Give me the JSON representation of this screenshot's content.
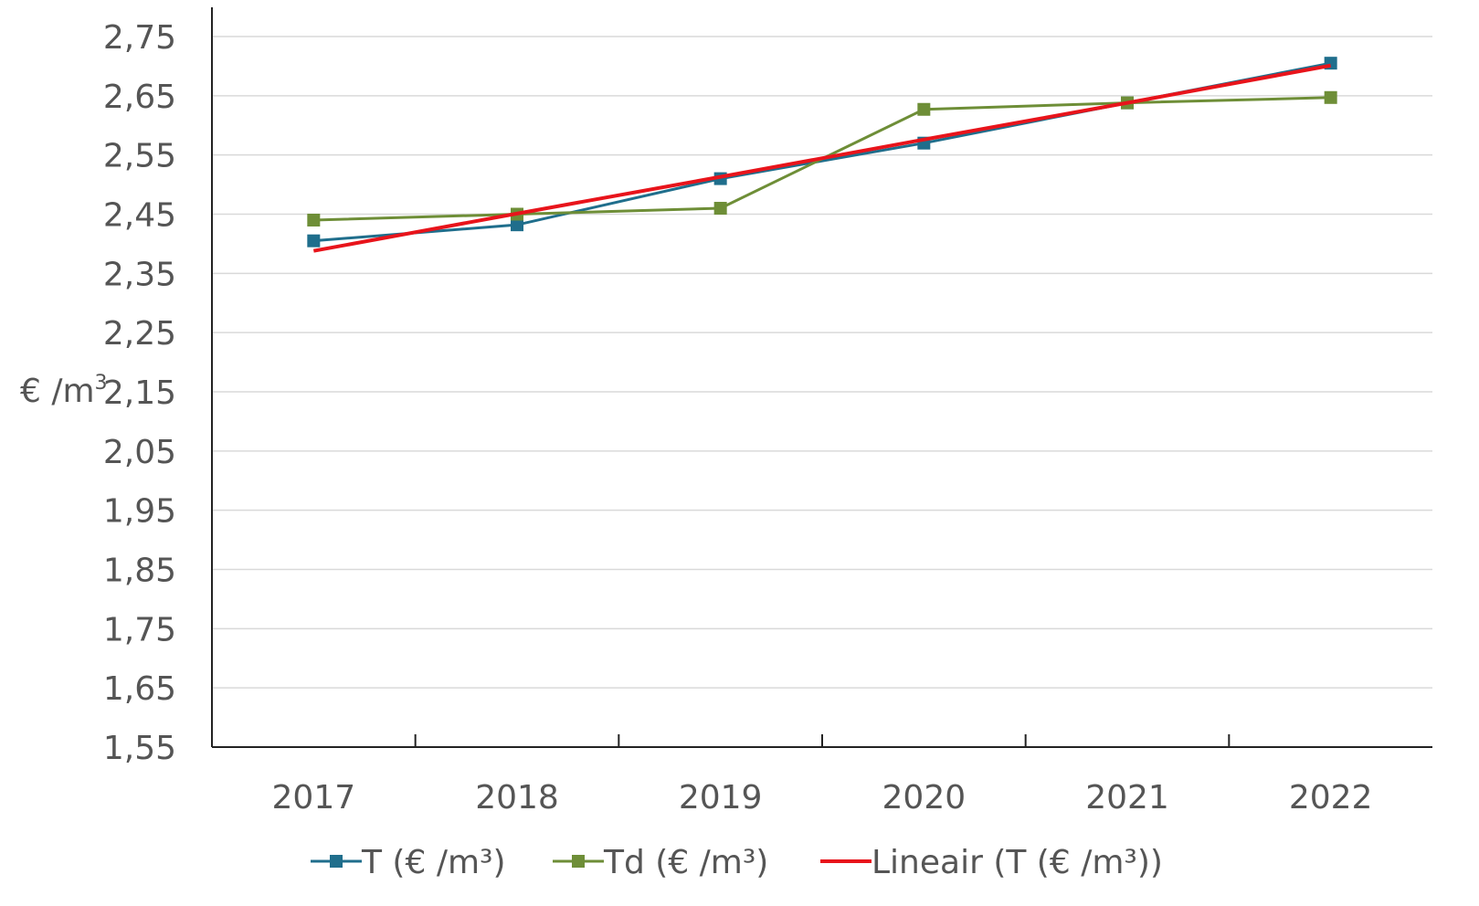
{
  "chart_data": {
    "type": "line",
    "title": "",
    "xlabel": "",
    "ylabel": "€ /m³",
    "ylabel_parts": {
      "base": "€ /m",
      "sup": "3"
    },
    "categories": [
      "2017",
      "2018",
      "2019",
      "2020",
      "2021",
      "2022"
    ],
    "ylim": [
      1.55,
      2.75
    ],
    "yticks": [
      "1,55",
      "1,65",
      "1,75",
      "1,85",
      "1,95",
      "2,05",
      "2,15",
      "2,25",
      "2,35",
      "2,45",
      "2,55",
      "2,65",
      "2,75"
    ],
    "grid": true,
    "legend_position": "bottom",
    "series": [
      {
        "name": "T (€ /m³)",
        "values": [
          2.405,
          2.432,
          2.51,
          2.57,
          2.638,
          2.705
        ],
        "color": "#1f6e8c",
        "marker": "square"
      },
      {
        "name": "Td (€ /m³)",
        "values": [
          2.44,
          2.45,
          2.46,
          2.627,
          2.638,
          2.647
        ],
        "color": "#6e8e37",
        "marker": "square"
      },
      {
        "name": "Lineair (T (€ /m³))",
        "values": [
          2.388,
          2.451,
          2.513,
          2.576,
          2.638,
          2.701
        ],
        "color": "#e8141b",
        "marker": "none"
      }
    ]
  }
}
